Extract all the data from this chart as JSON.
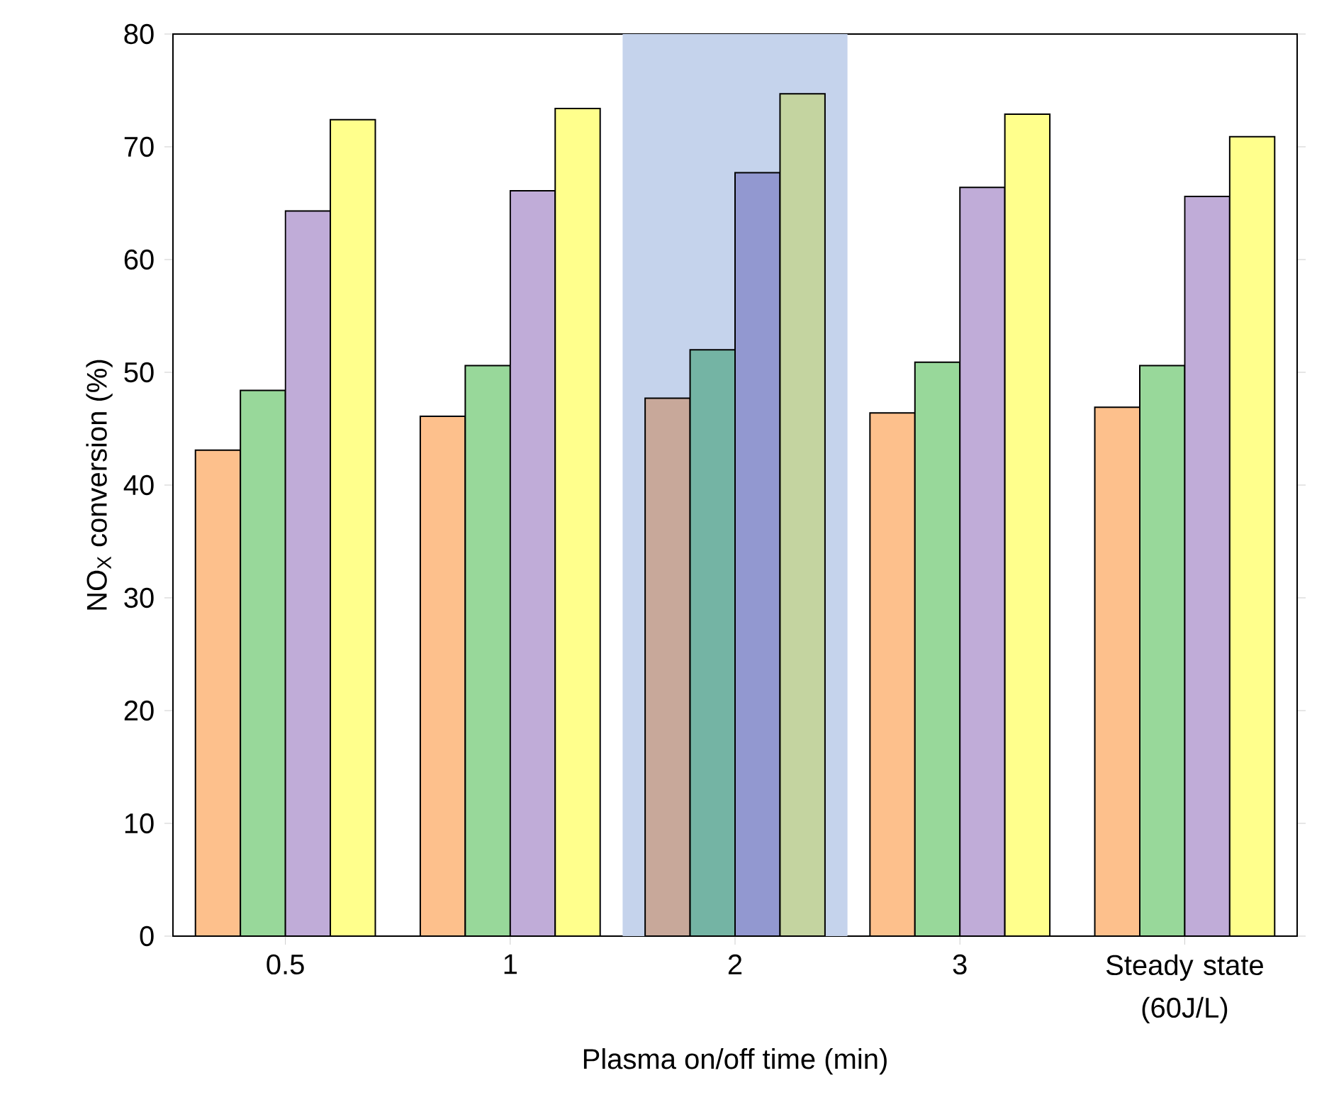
{
  "chart_data": {
    "type": "bar",
    "xlabel": "Plasma on/off time (min)",
    "ylabel": "NO$_{X}$ conversion (%)",
    "categories": [
      "0.5",
      "1",
      "2",
      "3",
      "Steady state (60J/L)"
    ],
    "series": [
      {
        "colors": [
          "#fdc08c",
          "#fdc08c",
          "#c8a89a",
          "#fdc08c",
          "#fdc08c"
        ],
        "values": [
          43.1,
          46.1,
          47.7,
          46.4,
          46.9
        ]
      },
      {
        "colors": [
          "#98d89a",
          "#98d89a",
          "#74b4a4",
          "#98d89a",
          "#98d89a"
        ],
        "values": [
          48.4,
          50.6,
          52.0,
          50.9,
          50.6
        ]
      },
      {
        "colors": [
          "#c0acd8",
          "#c0acd8",
          "#9298d0",
          "#c0acd8",
          "#c0acd8"
        ],
        "values": [
          64.3,
          66.1,
          67.7,
          66.4,
          65.6
        ]
      },
      {
        "colors": [
          "#ffff8c",
          "#ffff8c",
          "#c4d4a0",
          "#ffff8c",
          "#ffff8c"
        ],
        "values": [
          72.4,
          73.4,
          74.7,
          72.9,
          70.9
        ]
      }
    ],
    "bands": [
      {
        "axis": "x",
        "from": "2",
        "to": "2",
        "color": "#c5d3ec"
      }
    ],
    "ylim": [
      0,
      80
    ],
    "yticks": [
      0,
      10,
      20,
      30,
      40,
      50,
      60,
      70,
      80
    ]
  }
}
